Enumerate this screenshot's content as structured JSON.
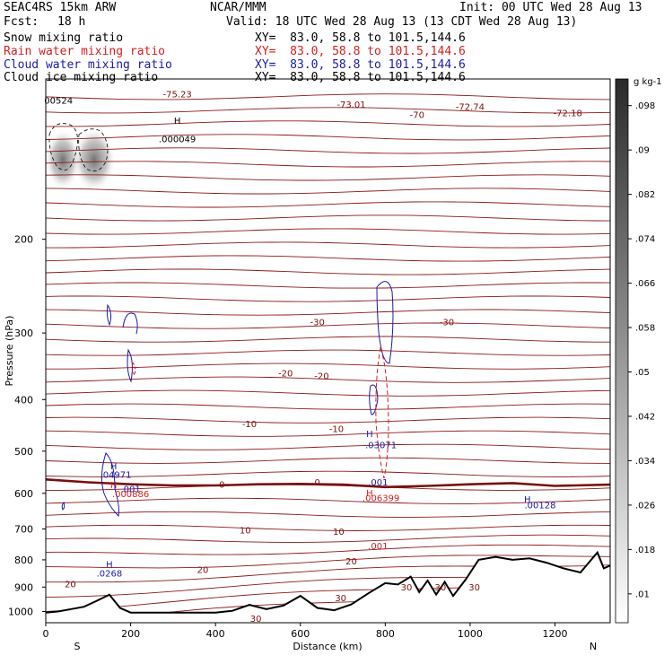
{
  "header": {
    "model": "SEAC4RS 15km ARW",
    "org": "NCAR/MMM",
    "init": "Init: 00 UTC Wed 28 Aug 13",
    "fcst_label": "Fcst:",
    "fcst_value": "18 h",
    "valid": "Valid: 18 UTC Wed 28 Aug 13 (13 CDT Wed 28 Aug 13)",
    "fields": [
      {
        "name": "Snow mixing ratio",
        "xy": "XY=  83.0, 58.8 to 101.5,144.6",
        "color": "#000000"
      },
      {
        "name": "Rain water mixing ratio",
        "xy": "XY=  83.0, 58.8 to 101.5,144.6",
        "color": "#d42020"
      },
      {
        "name": "Cloud water mixing ratio",
        "xy": "XY=  83.0, 58.8 to 101.5,144.6",
        "color": "#1a1aa8"
      },
      {
        "name": "Cloud ice mixing ratio",
        "xy": "XY=  83.0, 58.8 to 101.5,144.6",
        "color": "#000000"
      }
    ]
  },
  "chart_data": {
    "type": "line",
    "xlabel": "Distance (km)",
    "ylabel": "Pressure (hPa)",
    "xlim": [
      0,
      1330
    ],
    "ylim": [
      1050,
      100
    ],
    "y_scale": "log",
    "x_ticks": [
      0,
      200,
      400,
      600,
      800,
      1000,
      1200
    ],
    "y_ticks": [
      200,
      300,
      400,
      500,
      600,
      700,
      800,
      900,
      1000
    ],
    "x_end_labels": {
      "left": "S",
      "right": "N"
    },
    "colorbar": {
      "unit": "g kg-1",
      "ticks": [
        ".01",
        ".018",
        ".026",
        ".034",
        ".042",
        ".05",
        ".058",
        ".066",
        ".074",
        ".082",
        ".09",
        ".098"
      ]
    },
    "temperature_contour_labels": [
      {
        "text": "-75.23",
        "x": 310,
        "p": 107
      },
      {
        "text": "-73.01",
        "x": 720,
        "p": 112
      },
      {
        "text": "-70",
        "x": 875,
        "p": 117
      },
      {
        "text": "-72.74",
        "x": 1000,
        "p": 113
      },
      {
        "text": "-72.18",
        "x": 1230,
        "p": 116
      },
      {
        "text": "-30",
        "x": 640,
        "p": 287
      },
      {
        "text": "-30",
        "x": 945,
        "p": 287
      },
      {
        "text": "-20",
        "x": 565,
        "p": 358
      },
      {
        "text": "-20",
        "x": 650,
        "p": 362
      },
      {
        "text": "-10",
        "x": 480,
        "p": 445
      },
      {
        "text": "-10",
        "x": 685,
        "p": 455
      },
      {
        "text": "0",
        "x": 415,
        "p": 579
      },
      {
        "text": "0",
        "x": 640,
        "p": 573
      },
      {
        "text": "10",
        "x": 470,
        "p": 706
      },
      {
        "text": "10",
        "x": 690,
        "p": 710
      },
      {
        "text": "20",
        "x": 370,
        "p": 837
      },
      {
        "text": "20",
        "x": 720,
        "p": 807
      },
      {
        "text": "20",
        "x": 58,
        "p": 890
      },
      {
        "text": "30",
        "x": 695,
        "p": 946
      },
      {
        "text": "30",
        "x": 850,
        "p": 903
      },
      {
        "text": "30",
        "x": 930,
        "p": 903
      },
      {
        "text": "30",
        "x": 1010,
        "p": 903
      },
      {
        "text": "30",
        "x": 495,
        "p": 1033
      }
    ],
    "extrema_labels": [
      {
        "field": "snow",
        "text": "H",
        "x": 310,
        "p": 120
      },
      {
        "field": "snow",
        "text": ".000049",
        "x": 310,
        "p": 130
      },
      {
        "field": "cloud_ice",
        "text": "00524",
        "x": 30,
        "p": 110
      },
      {
        "field": "cloud_water",
        "text": "H",
        "x": 160,
        "p": 535
      },
      {
        "field": "cloud_water",
        "text": ".04971",
        "x": 165,
        "p": 555
      },
      {
        "field": "rain",
        "text": "H",
        "x": 160,
        "p": 580
      },
      {
        "field": "cloud_water",
        "text": ".001",
        "x": 200,
        "p": 590
      },
      {
        "field": "rain",
        "text": ".000886",
        "x": 200,
        "p": 603
      },
      {
        "field": "cloud_water",
        "text": "H",
        "x": 763,
        "p": 465
      },
      {
        "field": "cloud_water",
        "text": ".03071",
        "x": 790,
        "p": 488
      },
      {
        "field": "cloud_water",
        "text": ".001",
        "x": 783,
        "p": 573
      },
      {
        "field": "rain",
        "text": "H",
        "x": 763,
        "p": 600
      },
      {
        "field": "rain",
        "text": ".006399",
        "x": 790,
        "p": 614
      },
      {
        "field": "rain",
        "text": ".001",
        "x": 783,
        "p": 755
      },
      {
        "field": "cloud_water",
        "text": "H",
        "x": 1135,
        "p": 617
      },
      {
        "field": "cloud_water",
        "text": ".00128",
        "x": 1165,
        "p": 633
      },
      {
        "field": "cloud_water",
        "text": "H",
        "x": 150,
        "p": 817
      },
      {
        "field": "cloud_water",
        "text": ".0268",
        "x": 150,
        "p": 850
      }
    ],
    "zero_isotherm": {
      "x": [
        0,
        100,
        200,
        300,
        400,
        500,
        600,
        700,
        800,
        900,
        1000,
        1100,
        1200,
        1330
      ],
      "p": [
        565,
        572,
        577,
        580,
        580,
        577,
        576,
        578,
        584,
        581,
        577,
        574,
        581,
        578
      ]
    },
    "terrain": {
      "x": [
        0,
        30,
        60,
        90,
        120,
        150,
        175,
        200,
        240,
        300,
        360,
        400,
        440,
        480,
        520,
        560,
        600,
        640,
        680,
        720,
        760,
        800,
        830,
        860,
        880,
        900,
        920,
        940,
        960,
        990,
        1020,
        1060,
        1100,
        1140,
        1180,
        1220,
        1260,
        1300,
        1315,
        1330
      ],
      "p": [
        1005,
        1000,
        990,
        980,
        955,
        930,
        985,
        1005,
        1005,
        1005,
        1005,
        1005,
        997,
        972,
        990,
        975,
        935,
        985,
        995,
        970,
        925,
        885,
        890,
        860,
        920,
        875,
        930,
        880,
        935,
        870,
        800,
        790,
        800,
        795,
        810,
        830,
        845,
        775,
        830,
        820
      ]
    }
  }
}
